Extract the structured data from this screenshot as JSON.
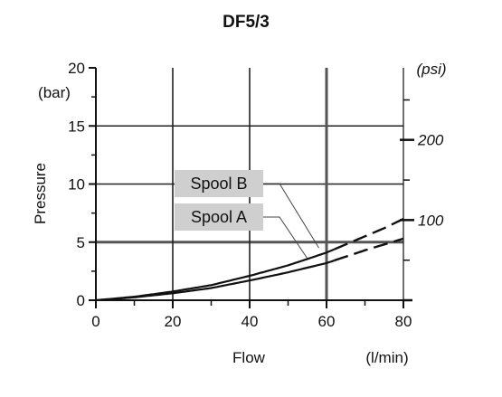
{
  "chart_data": {
    "type": "line",
    "title": "DF5/3",
    "xlabel": "Flow",
    "xunit": "(l/min)",
    "ylabel": "Pressure",
    "yunit": "(bar)",
    "y2unit": "(psi)",
    "xlim": [
      0,
      80
    ],
    "ylim": [
      0,
      20
    ],
    "grid": true,
    "x_ticks": [
      0,
      20,
      40,
      60,
      80
    ],
    "y_ticks": [
      0,
      5,
      10,
      15,
      20
    ],
    "y2_ticks": [
      {
        "label": "100",
        "bar": 6.9
      },
      {
        "label": "200",
        "bar": 13.8
      }
    ],
    "dashed_from_x": 62,
    "series": [
      {
        "name": "Spool B",
        "label_point": [
          58,
          4.5
        ],
        "x": [
          0,
          10,
          20,
          30,
          40,
          50,
          60,
          65,
          70,
          75,
          80
        ],
        "y": [
          0,
          0.3,
          0.75,
          1.3,
          2.1,
          3.0,
          4.1,
          4.8,
          5.5,
          6.2,
          7.0
        ]
      },
      {
        "name": "Spool A",
        "label_point": [
          55,
          3.6
        ],
        "x": [
          0,
          10,
          20,
          30,
          40,
          50,
          60,
          65,
          70,
          75,
          80
        ],
        "y": [
          0,
          0.25,
          0.6,
          1.05,
          1.7,
          2.4,
          3.2,
          3.75,
          4.3,
          4.8,
          5.3
        ]
      }
    ]
  }
}
